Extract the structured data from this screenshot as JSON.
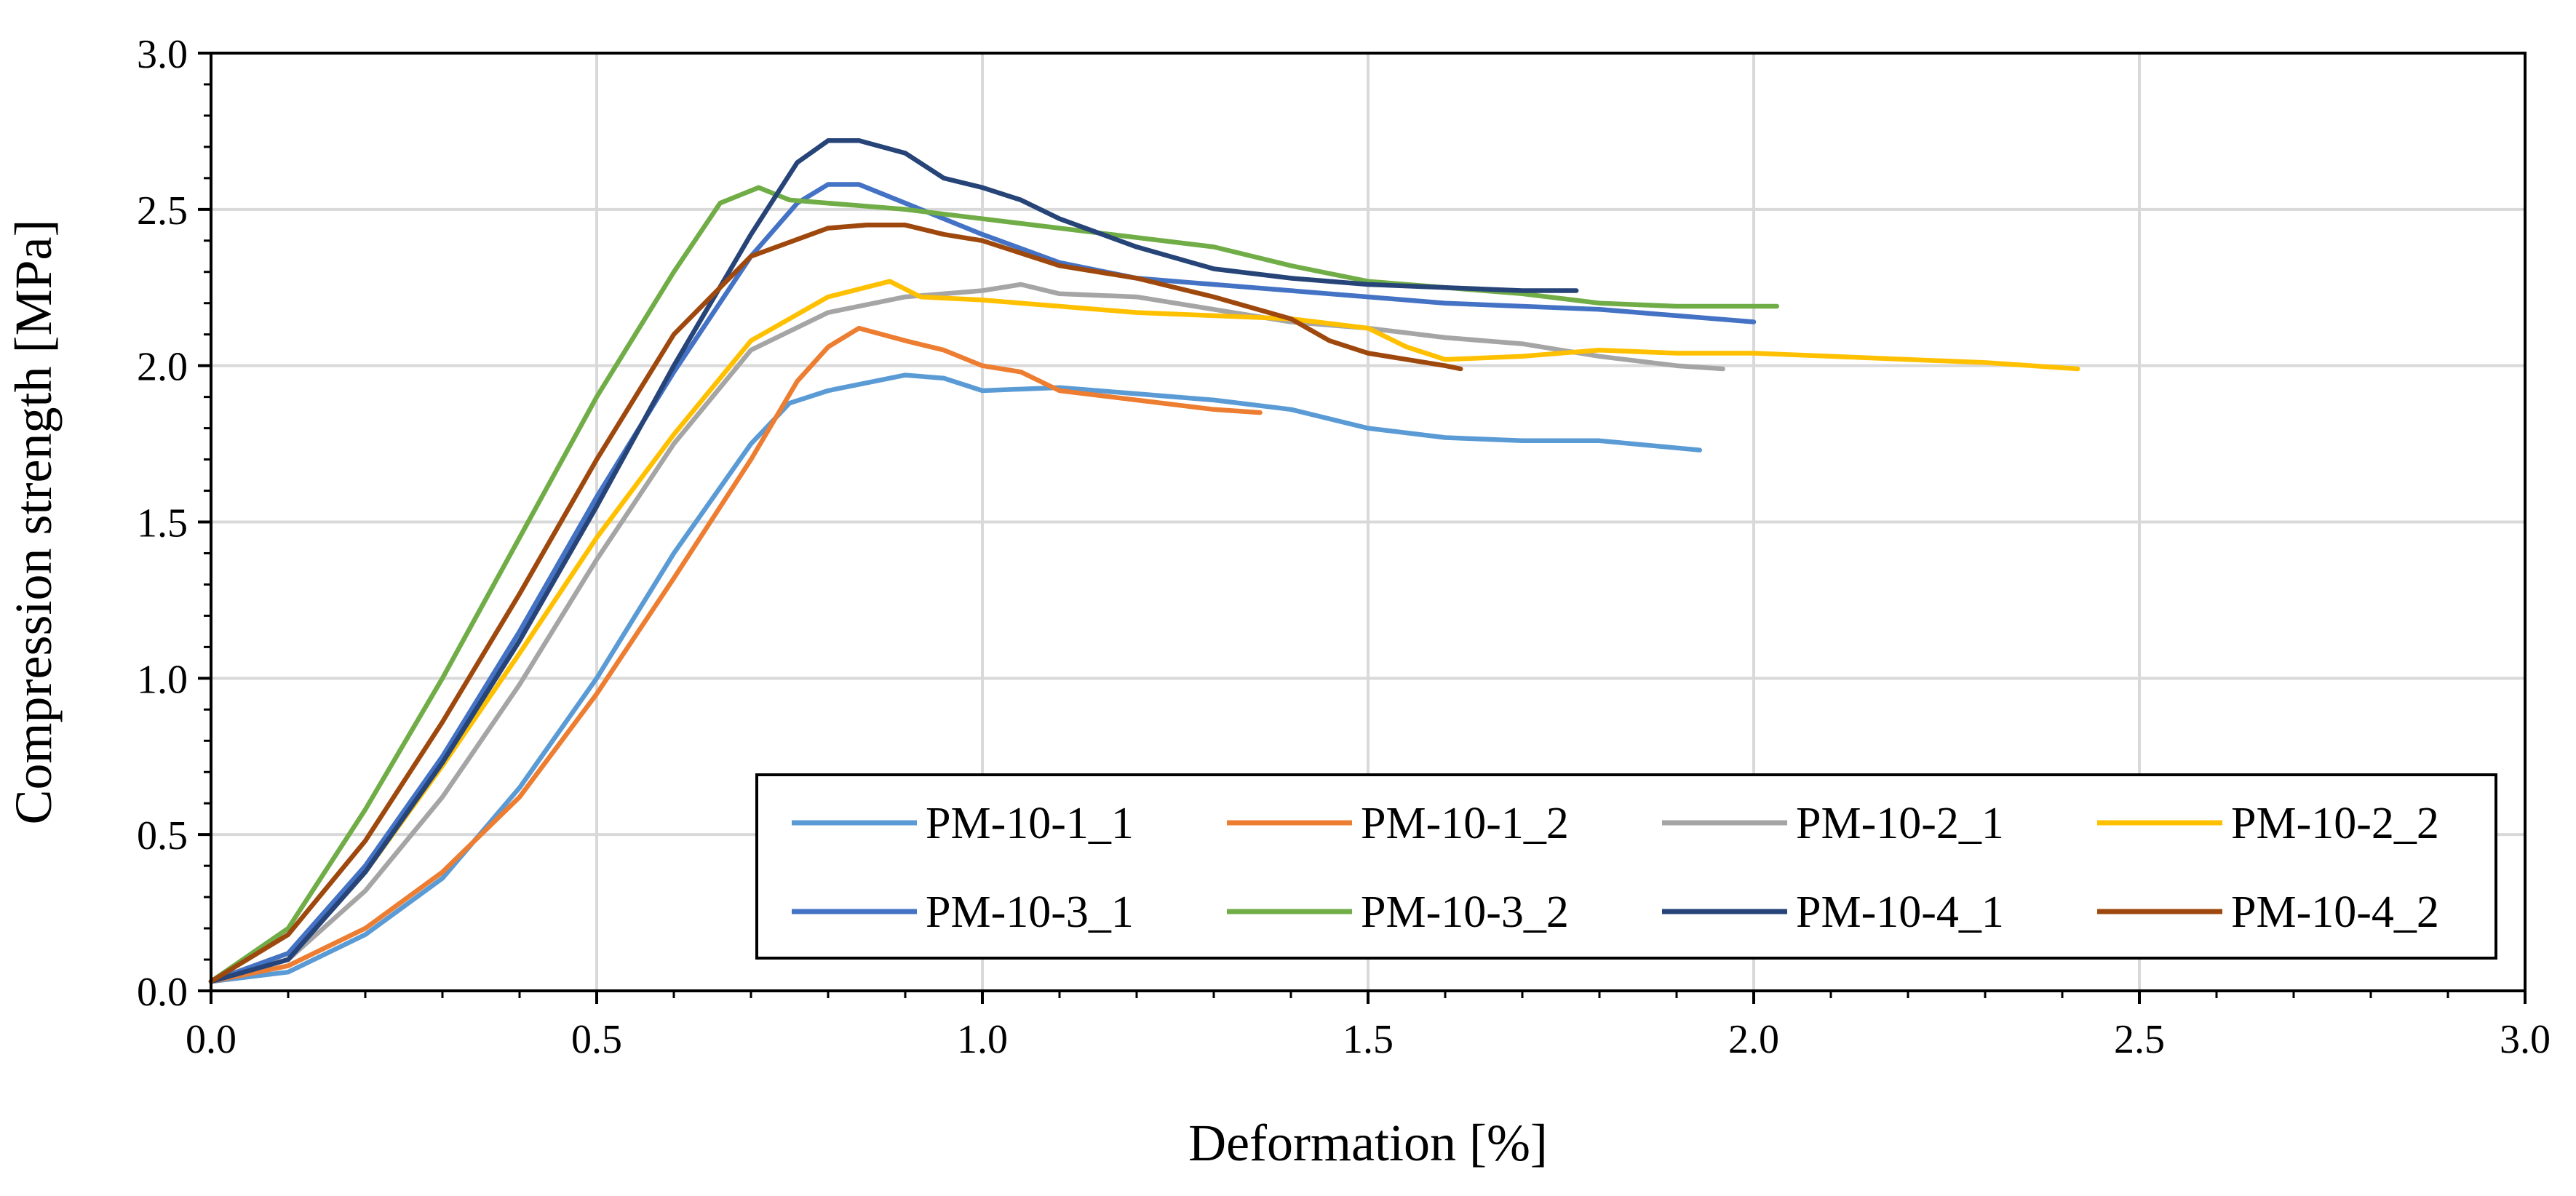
{
  "chart_data": {
    "type": "line",
    "title": "",
    "xlabel": "Deformation [%]",
    "ylabel": "Compression strength [MPa]",
    "xlim": [
      0,
      3
    ],
    "ylim": [
      0,
      3
    ],
    "x_ticks": [
      "0.0",
      "0.5",
      "1.0",
      "1.5",
      "2.0",
      "2.5",
      "3.0"
    ],
    "y_ticks": [
      "0.0",
      "0.5",
      "1.0",
      "1.5",
      "2.0",
      "2.5",
      "3.0"
    ],
    "grid": true,
    "legend_position": "bottom-right",
    "series": [
      {
        "name": "PM-10-1_1",
        "color": "#5B9BD5",
        "points": [
          [
            0.0,
            0.03
          ],
          [
            0.1,
            0.06
          ],
          [
            0.2,
            0.18
          ],
          [
            0.3,
            0.36
          ],
          [
            0.4,
            0.65
          ],
          [
            0.5,
            1.0
          ],
          [
            0.6,
            1.4
          ],
          [
            0.7,
            1.75
          ],
          [
            0.75,
            1.88
          ],
          [
            0.8,
            1.92
          ],
          [
            0.9,
            1.97
          ],
          [
            0.95,
            1.96
          ],
          [
            1.0,
            1.92
          ],
          [
            1.1,
            1.93
          ],
          [
            1.2,
            1.91
          ],
          [
            1.3,
            1.89
          ],
          [
            1.4,
            1.86
          ],
          [
            1.5,
            1.8
          ],
          [
            1.6,
            1.77
          ],
          [
            1.7,
            1.76
          ],
          [
            1.8,
            1.76
          ],
          [
            1.93,
            1.73
          ]
        ]
      },
      {
        "name": "PM-10-1_2",
        "color": "#ED7D31",
        "points": [
          [
            0.0,
            0.03
          ],
          [
            0.1,
            0.08
          ],
          [
            0.2,
            0.2
          ],
          [
            0.3,
            0.38
          ],
          [
            0.4,
            0.62
          ],
          [
            0.5,
            0.95
          ],
          [
            0.6,
            1.32
          ],
          [
            0.7,
            1.7
          ],
          [
            0.76,
            1.95
          ],
          [
            0.8,
            2.06
          ],
          [
            0.84,
            2.12
          ],
          [
            0.9,
            2.08
          ],
          [
            0.95,
            2.05
          ],
          [
            1.0,
            2.0
          ],
          [
            1.05,
            1.98
          ],
          [
            1.1,
            1.92
          ],
          [
            1.2,
            1.89
          ],
          [
            1.3,
            1.86
          ],
          [
            1.36,
            1.85
          ]
        ]
      },
      {
        "name": "PM-10-2_1",
        "color": "#A5A5A5",
        "points": [
          [
            0.0,
            0.03
          ],
          [
            0.1,
            0.1
          ],
          [
            0.2,
            0.32
          ],
          [
            0.3,
            0.62
          ],
          [
            0.4,
            0.98
          ],
          [
            0.5,
            1.38
          ],
          [
            0.6,
            1.75
          ],
          [
            0.7,
            2.05
          ],
          [
            0.8,
            2.17
          ],
          [
            0.9,
            2.22
          ],
          [
            1.0,
            2.24
          ],
          [
            1.05,
            2.26
          ],
          [
            1.1,
            2.23
          ],
          [
            1.2,
            2.22
          ],
          [
            1.3,
            2.18
          ],
          [
            1.4,
            2.14
          ],
          [
            1.5,
            2.12
          ],
          [
            1.6,
            2.09
          ],
          [
            1.7,
            2.07
          ],
          [
            1.8,
            2.03
          ],
          [
            1.9,
            2.0
          ],
          [
            1.96,
            1.99
          ]
        ]
      },
      {
        "name": "PM-10-2_2",
        "color": "#FFC000",
        "points": [
          [
            0.0,
            0.03
          ],
          [
            0.1,
            0.12
          ],
          [
            0.2,
            0.38
          ],
          [
            0.3,
            0.72
          ],
          [
            0.4,
            1.08
          ],
          [
            0.5,
            1.45
          ],
          [
            0.6,
            1.78
          ],
          [
            0.7,
            2.08
          ],
          [
            0.8,
            2.22
          ],
          [
            0.88,
            2.27
          ],
          [
            0.92,
            2.22
          ],
          [
            1.0,
            2.21
          ],
          [
            1.1,
            2.19
          ],
          [
            1.2,
            2.17
          ],
          [
            1.3,
            2.16
          ],
          [
            1.4,
            2.15
          ],
          [
            1.5,
            2.12
          ],
          [
            1.55,
            2.06
          ],
          [
            1.6,
            2.02
          ],
          [
            1.7,
            2.03
          ],
          [
            1.8,
            2.05
          ],
          [
            1.9,
            2.04
          ],
          [
            2.0,
            2.04
          ],
          [
            2.1,
            2.03
          ],
          [
            2.2,
            2.02
          ],
          [
            2.3,
            2.01
          ],
          [
            2.42,
            1.99
          ]
        ]
      },
      {
        "name": "PM-10-3_1",
        "color": "#4472C4",
        "points": [
          [
            0.0,
            0.03
          ],
          [
            0.1,
            0.12
          ],
          [
            0.2,
            0.4
          ],
          [
            0.3,
            0.75
          ],
          [
            0.4,
            1.15
          ],
          [
            0.5,
            1.58
          ],
          [
            0.6,
            1.98
          ],
          [
            0.7,
            2.35
          ],
          [
            0.76,
            2.52
          ],
          [
            0.8,
            2.58
          ],
          [
            0.84,
            2.58
          ],
          [
            0.9,
            2.52
          ],
          [
            1.0,
            2.42
          ],
          [
            1.1,
            2.33
          ],
          [
            1.2,
            2.28
          ],
          [
            1.3,
            2.26
          ],
          [
            1.4,
            2.24
          ],
          [
            1.5,
            2.22
          ],
          [
            1.6,
            2.2
          ],
          [
            1.7,
            2.19
          ],
          [
            1.8,
            2.18
          ],
          [
            1.9,
            2.16
          ],
          [
            2.0,
            2.14
          ]
        ]
      },
      {
        "name": "PM-10-3_2",
        "color": "#70AD47",
        "points": [
          [
            0.0,
            0.03
          ],
          [
            0.1,
            0.2
          ],
          [
            0.2,
            0.58
          ],
          [
            0.3,
            1.0
          ],
          [
            0.4,
            1.45
          ],
          [
            0.5,
            1.9
          ],
          [
            0.6,
            2.3
          ],
          [
            0.66,
            2.52
          ],
          [
            0.71,
            2.57
          ],
          [
            0.75,
            2.53
          ],
          [
            0.8,
            2.52
          ],
          [
            0.9,
            2.5
          ],
          [
            1.0,
            2.47
          ],
          [
            1.1,
            2.44
          ],
          [
            1.2,
            2.41
          ],
          [
            1.3,
            2.38
          ],
          [
            1.4,
            2.32
          ],
          [
            1.5,
            2.27
          ],
          [
            1.6,
            2.25
          ],
          [
            1.7,
            2.23
          ],
          [
            1.8,
            2.2
          ],
          [
            1.9,
            2.19
          ],
          [
            2.03,
            2.19
          ]
        ]
      },
      {
        "name": "PM-10-4_1",
        "color": "#264478",
        "points": [
          [
            0.0,
            0.03
          ],
          [
            0.1,
            0.1
          ],
          [
            0.2,
            0.38
          ],
          [
            0.3,
            0.73
          ],
          [
            0.4,
            1.12
          ],
          [
            0.5,
            1.55
          ],
          [
            0.6,
            2.0
          ],
          [
            0.7,
            2.42
          ],
          [
            0.76,
            2.65
          ],
          [
            0.8,
            2.72
          ],
          [
            0.84,
            2.72
          ],
          [
            0.9,
            2.68
          ],
          [
            0.95,
            2.6
          ],
          [
            1.0,
            2.57
          ],
          [
            1.05,
            2.53
          ],
          [
            1.1,
            2.47
          ],
          [
            1.2,
            2.38
          ],
          [
            1.3,
            2.31
          ],
          [
            1.4,
            2.28
          ],
          [
            1.5,
            2.26
          ],
          [
            1.6,
            2.25
          ],
          [
            1.7,
            2.24
          ],
          [
            1.77,
            2.24
          ]
        ]
      },
      {
        "name": "PM-10-4_2",
        "color": "#9E480E",
        "points": [
          [
            0.0,
            0.03
          ],
          [
            0.1,
            0.18
          ],
          [
            0.2,
            0.48
          ],
          [
            0.3,
            0.86
          ],
          [
            0.4,
            1.27
          ],
          [
            0.5,
            1.7
          ],
          [
            0.6,
            2.1
          ],
          [
            0.7,
            2.35
          ],
          [
            0.8,
            2.44
          ],
          [
            0.85,
            2.45
          ],
          [
            0.9,
            2.45
          ],
          [
            0.95,
            2.42
          ],
          [
            1.0,
            2.4
          ],
          [
            1.05,
            2.36
          ],
          [
            1.1,
            2.32
          ],
          [
            1.2,
            2.28
          ],
          [
            1.3,
            2.22
          ],
          [
            1.4,
            2.15
          ],
          [
            1.45,
            2.08
          ],
          [
            1.5,
            2.04
          ],
          [
            1.6,
            2.0
          ],
          [
            1.62,
            1.99
          ]
        ]
      }
    ]
  }
}
